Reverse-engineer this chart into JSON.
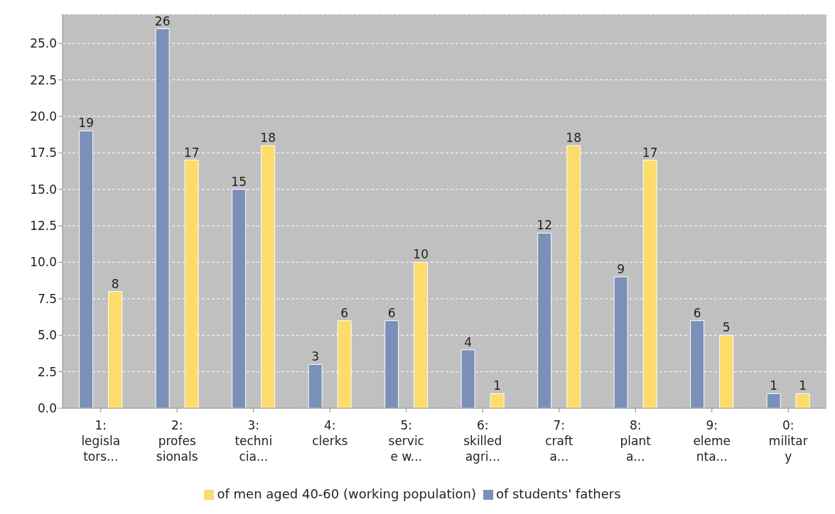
{
  "chart_data": {
    "type": "bar",
    "categories": [
      "1:\nlegisla\ntors...",
      "2:\nprofes\nsionals",
      "3:\ntechni\ncia...",
      "4:\nclerks",
      "5:\nservic\ne w...",
      "6:\nskilled\nagri...",
      "7:\ncraft\na...",
      "8:\nplant\na...",
      "9:\neleme\nnta...",
      "0:\nmilitar\ny"
    ],
    "series": [
      {
        "name": "of students' fathers",
        "color": "#7b90b8",
        "values": [
          19,
          26,
          15,
          3,
          6,
          4,
          12,
          9,
          6,
          1
        ]
      },
      {
        "name": "of men aged 40-60 (working population)",
        "color": "#fddc6c",
        "values": [
          8,
          17,
          18,
          6,
          10,
          1,
          18,
          17,
          5,
          1
        ]
      }
    ],
    "ylim": [
      0,
      27
    ],
    "yticks": [
      {
        "value": 0,
        "label": "0.0"
      },
      {
        "value": 2.5,
        "label": "2.5"
      },
      {
        "value": 5,
        "label": "5.0"
      },
      {
        "value": 7.5,
        "label": "7.5"
      },
      {
        "value": 10,
        "label": "10.0"
      },
      {
        "value": 12.5,
        "label": "12.5"
      },
      {
        "value": 15,
        "label": "15.0"
      },
      {
        "value": 17.5,
        "label": "17.5"
      },
      {
        "value": 20,
        "label": "20.0"
      },
      {
        "value": 22.5,
        "label": "22.5"
      },
      {
        "value": 25,
        "label": "25.0"
      }
    ],
    "grid": "y",
    "legend": "bottom",
    "data_labels": true
  }
}
